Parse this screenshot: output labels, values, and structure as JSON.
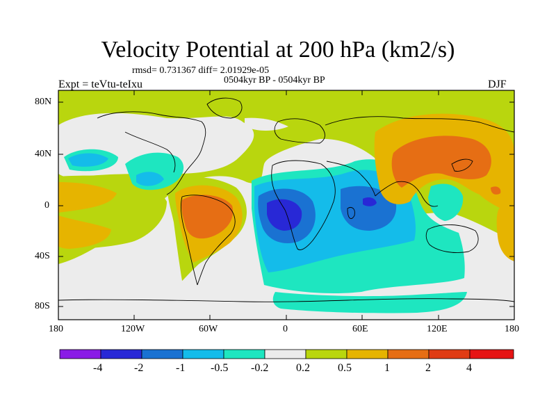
{
  "header": {
    "title": "Velocity Potential at 200 hPa (km2/s)",
    "stats": "rmsd= 0.731367 diff= 2.01929e-05",
    "period": "0504kyr BP - 0504kyr BP",
    "experiment": "Expt = teVtu-teIxu",
    "season": "DJF"
  },
  "axes": {
    "lat_ticks": [
      "80N",
      "40N",
      "0",
      "40S",
      "80S"
    ],
    "lon_ticks": [
      "180",
      "120W",
      "60W",
      "0",
      "60E",
      "120E",
      "180"
    ]
  },
  "colorbar": {
    "labels": [
      "-4",
      "-2",
      "-1",
      "-0.5",
      "-0.2",
      "0.2",
      "0.5",
      "1",
      "2",
      "4"
    ],
    "colors": [
      "#8a1be6",
      "#2828d6",
      "#1a72d2",
      "#14bcea",
      "#1ee6c0",
      "#ececec",
      "#b9d60e",
      "#e6b400",
      "#e66e14",
      "#e03c14",
      "#e61414"
    ]
  },
  "field_colors": {
    "background": "#b9d60e",
    "neutral": "#ececec",
    "cyan": "#1ee6c0",
    "sky": "#14bcea",
    "blue": "#1a72d2",
    "deep_blue": "#2828d6",
    "yellow": "#e6b400",
    "orange": "#e66e14"
  }
}
